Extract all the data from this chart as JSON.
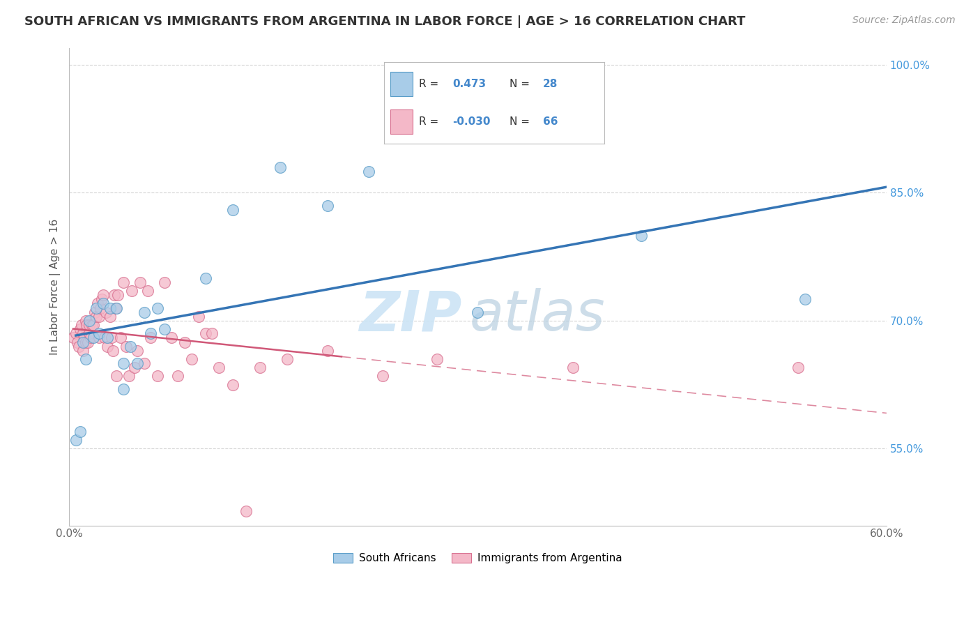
{
  "title": "SOUTH AFRICAN VS IMMIGRANTS FROM ARGENTINA IN LABOR FORCE | AGE > 16 CORRELATION CHART",
  "source": "Source: ZipAtlas.com",
  "ylabel": "In Labor Force | Age > 16",
  "xlim": [
    0.0,
    0.6
  ],
  "ylim": [
    0.46,
    1.02
  ],
  "xticks": [
    0.0,
    0.1,
    0.2,
    0.3,
    0.4,
    0.5,
    0.6
  ],
  "xticklabels": [
    "0.0%",
    "",
    "",
    "",
    "",
    "",
    "60.0%"
  ],
  "yticks": [
    0.55,
    0.7,
    0.85,
    1.0
  ],
  "yticklabels": [
    "55.0%",
    "70.0%",
    "85.0%",
    "100.0%"
  ],
  "south_africans": {
    "color": "#a8cce8",
    "edge_color": "#5a9dc8",
    "line_color": "#3575b5",
    "x": [
      0.005,
      0.008,
      0.01,
      0.012,
      0.015,
      0.018,
      0.02,
      0.022,
      0.025,
      0.028,
      0.03,
      0.035,
      0.04,
      0.04,
      0.045,
      0.05,
      0.055,
      0.06,
      0.065,
      0.07,
      0.1,
      0.12,
      0.155,
      0.19,
      0.22,
      0.3,
      0.42,
      0.54
    ],
    "y": [
      0.56,
      0.57,
      0.675,
      0.655,
      0.7,
      0.68,
      0.715,
      0.685,
      0.72,
      0.68,
      0.715,
      0.715,
      0.62,
      0.65,
      0.67,
      0.65,
      0.71,
      0.685,
      0.715,
      0.69,
      0.75,
      0.83,
      0.88,
      0.835,
      0.875,
      0.71,
      0.8,
      0.725
    ]
  },
  "immigrants": {
    "color": "#f4b8c8",
    "edge_color": "#d87090",
    "line_color": "#d05878",
    "x": [
      0.003,
      0.005,
      0.006,
      0.007,
      0.008,
      0.009,
      0.01,
      0.01,
      0.011,
      0.012,
      0.012,
      0.013,
      0.014,
      0.015,
      0.015,
      0.016,
      0.017,
      0.018,
      0.019,
      0.02,
      0.021,
      0.022,
      0.022,
      0.023,
      0.024,
      0.025,
      0.026,
      0.027,
      0.028,
      0.03,
      0.031,
      0.032,
      0.033,
      0.034,
      0.035,
      0.036,
      0.038,
      0.04,
      0.042,
      0.044,
      0.046,
      0.048,
      0.05,
      0.052,
      0.055,
      0.058,
      0.06,
      0.065,
      0.07,
      0.075,
      0.08,
      0.085,
      0.09,
      0.095,
      0.1,
      0.105,
      0.11,
      0.12,
      0.13,
      0.14,
      0.16,
      0.19,
      0.23,
      0.27,
      0.37,
      0.535
    ],
    "y": [
      0.68,
      0.685,
      0.675,
      0.67,
      0.69,
      0.695,
      0.665,
      0.685,
      0.68,
      0.675,
      0.7,
      0.695,
      0.675,
      0.685,
      0.695,
      0.68,
      0.695,
      0.695,
      0.71,
      0.705,
      0.72,
      0.705,
      0.68,
      0.715,
      0.725,
      0.73,
      0.68,
      0.71,
      0.67,
      0.705,
      0.68,
      0.665,
      0.73,
      0.715,
      0.635,
      0.73,
      0.68,
      0.745,
      0.67,
      0.635,
      0.735,
      0.645,
      0.665,
      0.745,
      0.65,
      0.735,
      0.68,
      0.635,
      0.745,
      0.68,
      0.635,
      0.675,
      0.655,
      0.705,
      0.685,
      0.685,
      0.645,
      0.625,
      0.477,
      0.645,
      0.655,
      0.665,
      0.635,
      0.655,
      0.645,
      0.645
    ]
  },
  "watermark_zip": "ZIP",
  "watermark_atlas": "atlas",
  "background_color": "#ffffff",
  "grid_color": "#cccccc",
  "legend_text_color": "#333333",
  "legend_value_color_blue": "#4488cc",
  "legend_value_color_pink": "#cc4466",
  "r_sa": "0.473",
  "n_sa": "28",
  "r_im": "-0.030",
  "n_im": "66"
}
